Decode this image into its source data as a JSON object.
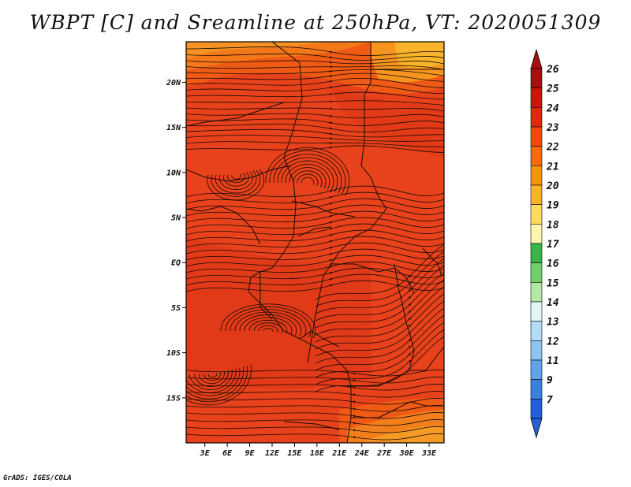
{
  "title": "WBPT [C] and Sreamline at 250hPa, VT: 2020051309",
  "credit": "GrADS: IGES/COLA",
  "map": {
    "lat_ticks": [
      "20N",
      "15N",
      "10N",
      "5N",
      "EQ",
      "5S",
      "10S",
      "15S"
    ],
    "lat_values": [
      20,
      15,
      10,
      5,
      0,
      -5,
      -10,
      -15
    ],
    "lon_ticks": [
      "3E",
      "6E",
      "9E",
      "12E",
      "15E",
      "18E",
      "21E",
      "24E",
      "27E",
      "30E",
      "33E"
    ],
    "lon_values": [
      3,
      6,
      9,
      12,
      15,
      18,
      21,
      24,
      27,
      30,
      33
    ],
    "lon_range": [
      0.5,
      35
    ],
    "lat_range": [
      -20,
      24.5
    ],
    "field_name": "WBPT",
    "field_units": "C",
    "dominant_range": "23-24",
    "streamlines": "mainly westerly/easterly flow with cyclonic/anticyclonic eddies"
  },
  "colorbar": {
    "labels": [
      "26",
      "25",
      "24",
      "23",
      "22",
      "21",
      "20",
      "19",
      "18",
      "17",
      "16",
      "15",
      "14",
      "13",
      "12",
      "11",
      "9",
      "7"
    ],
    "colors": [
      "#a50f0f",
      "#c8160a",
      "#de2a0a",
      "#ef4a0a",
      "#f56a0a",
      "#f8930d",
      "#f8b428",
      "#fadb5f",
      "#fdf5ac",
      "#37b44a",
      "#6fd06a",
      "#b3e8a6",
      "#e4f7f7",
      "#b4dcf5",
      "#8fc4f0",
      "#5fa3ea",
      "#3a80e0",
      "#2560d8"
    ]
  },
  "colors": {
    "primary_field": "#e8401a",
    "warm_edge": "#f08a18",
    "streamline": "#1a0a05",
    "border": "#1a0a05"
  }
}
